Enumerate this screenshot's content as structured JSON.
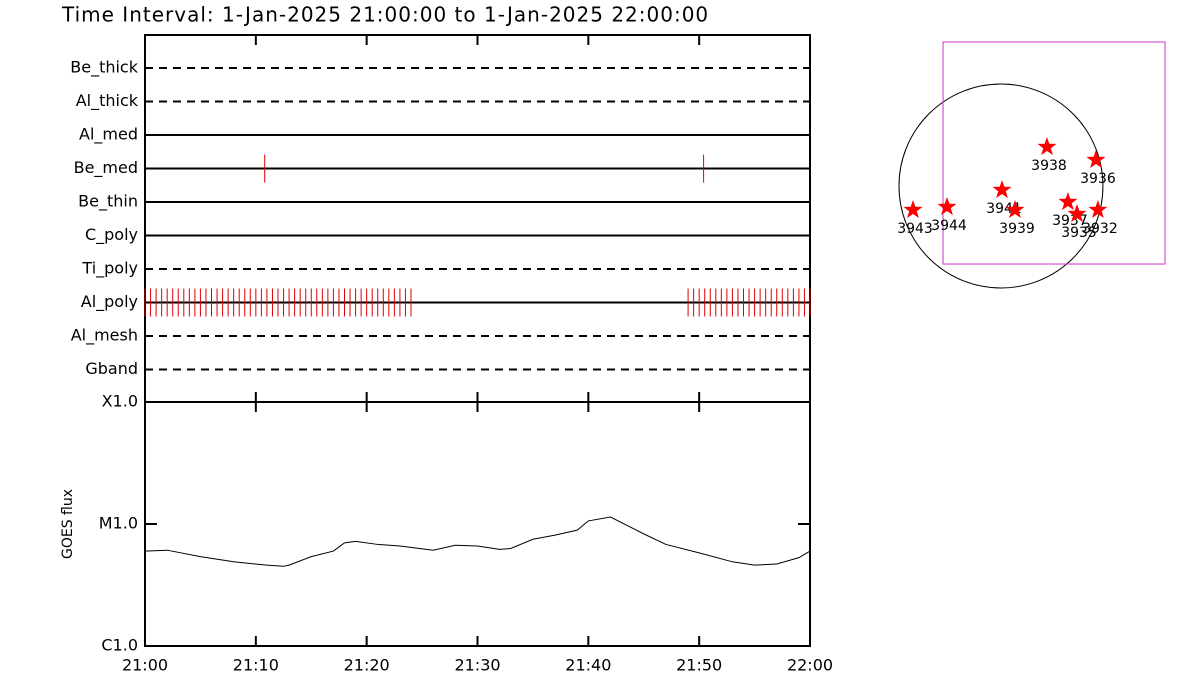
{
  "chart_data": [
    {
      "type": "timeline",
      "title": "Time Interval:  1-Jan-2025 21:00:00 to  1-Jan-2025 22:00:00",
      "xlim": [
        0,
        60
      ],
      "event_color": "#e00000",
      "rows": [
        {
          "label": "Be_thick",
          "style": "dashed",
          "events": []
        },
        {
          "label": "Al_thick",
          "style": "dashed",
          "events": []
        },
        {
          "label": "Al_med",
          "style": "solid",
          "events": []
        },
        {
          "label": "Be_med",
          "style": "solid",
          "events": [
            10.8,
            50.4
          ]
        },
        {
          "label": "Be_thin",
          "style": "solid",
          "events": []
        },
        {
          "label": "C_poly",
          "style": "solid",
          "events": []
        },
        {
          "label": "Ti_poly",
          "style": "dashed",
          "events": []
        },
        {
          "label": "Al_poly",
          "style": "solid",
          "events": [
            0,
            0.5,
            1,
            1.5,
            2,
            2.5,
            3,
            3.5,
            4,
            4.5,
            5,
            5.5,
            6,
            6.5,
            7,
            7.5,
            8,
            8.5,
            9,
            9.5,
            10,
            10.5,
            11,
            11.5,
            12,
            12.5,
            13,
            13.5,
            14,
            14.5,
            15,
            15.5,
            16,
            16.5,
            17,
            17.5,
            18,
            18.5,
            19,
            19.5,
            20,
            20.5,
            21,
            21.5,
            22,
            22.5,
            23,
            23.5,
            24,
            49,
            49.5,
            50,
            50.5,
            51,
            51.5,
            52,
            52.5,
            53,
            53.5,
            54,
            54.5,
            55,
            55.5,
            56,
            56.5,
            57,
            57.5,
            58,
            58.5,
            59,
            59.5,
            60
          ]
        },
        {
          "label": "Al_mesh",
          "style": "dashed",
          "events": []
        },
        {
          "label": "Gband",
          "style": "dashed",
          "events": []
        }
      ]
    },
    {
      "type": "line",
      "ylabel": "GOES flux",
      "log_scale": true,
      "color": "#000000",
      "x": [
        0,
        2,
        5,
        8,
        11,
        12.5,
        13,
        15,
        17,
        18,
        19,
        21,
        23,
        26,
        28,
        30,
        32,
        33,
        35,
        37,
        39,
        40,
        42,
        45,
        47,
        50,
        53,
        55,
        57,
        59,
        60
      ],
      "values": [
        6e-06,
        6.1e-06,
        5.4e-06,
        4.9e-06,
        4.6e-06,
        4.5e-06,
        4.6e-06,
        5.4e-06,
        6e-06,
        7e-06,
        7.2e-06,
        6.8e-06,
        6.6e-06,
        6.1e-06,
        6.7e-06,
        6.6e-06,
        6.2e-06,
        6.3e-06,
        7.5e-06,
        8.1e-06,
        8.9e-06,
        1.06e-05,
        1.14e-05,
        8.3e-06,
        6.8e-06,
        5.8e-06,
        4.9e-06,
        4.6e-06,
        4.7e-06,
        5.3e-06,
        6e-06
      ],
      "xlim": [
        0,
        60
      ],
      "xticks": [
        {
          "value": 0,
          "label": "21:00"
        },
        {
          "value": 10,
          "label": "21:10"
        },
        {
          "value": 20,
          "label": "21:20"
        },
        {
          "value": 30,
          "label": "21:30"
        },
        {
          "value": 40,
          "label": "21:40"
        },
        {
          "value": 50,
          "label": "21:50"
        },
        {
          "value": 60,
          "label": "22:00"
        }
      ],
      "ylim": [
        1e-06,
        0.0001
      ],
      "yticks": [
        {
          "value": 1e-06,
          "label": "C1.0"
        },
        {
          "value": 1e-05,
          "label": "M1.0"
        },
        {
          "value": 0.0001,
          "label": "X1.0"
        }
      ]
    },
    {
      "type": "map",
      "radius": 975,
      "xlim": [
        -1061,
        1616
      ],
      "ylim": [
        -1090,
        1396
      ],
      "marker_color": "#ff0000",
      "fov_color": "#cc33cc",
      "fov": {
        "xlim": [
          -554,
          1568
        ],
        "ylim": [
          -746,
          1377
        ]
      },
      "points": [
        {
          "label": "3943",
          "x": -841,
          "y": -229
        },
        {
          "label": "3944",
          "x": -516,
          "y": -201
        },
        {
          "label": "3941",
          "x": 10,
          "y": -38
        },
        {
          "label": "3939",
          "x": 134,
          "y": -229
        },
        {
          "label": "3937",
          "x": 640,
          "y": -153
        },
        {
          "label": "3935",
          "x": 727,
          "y": -268
        },
        {
          "label": "3932",
          "x": 927,
          "y": -229
        },
        {
          "label": "3938",
          "x": 440,
          "y": 373
        },
        {
          "label": "3936",
          "x": 908,
          "y": 249
        }
      ]
    }
  ]
}
